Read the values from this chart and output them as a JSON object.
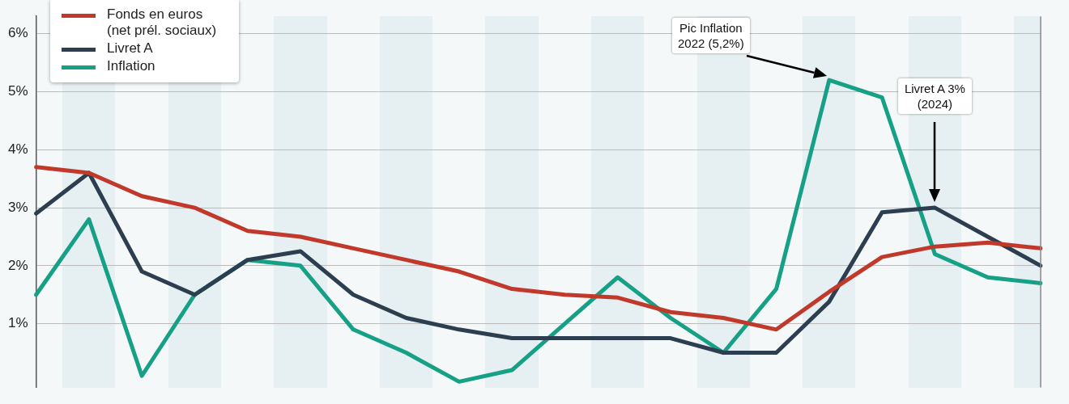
{
  "chart_data": {
    "type": "line",
    "categories": [
      null,
      null,
      null,
      null,
      null,
      null,
      null,
      null,
      null,
      null,
      null,
      null,
      null,
      null,
      null,
      null,
      null,
      null,
      null,
      null
    ],
    "ylim": [
      -0.1,
      6.3
    ],
    "yticks": [
      {
        "value": 1,
        "label": "1%"
      },
      {
        "value": 2,
        "label": "2%"
      },
      {
        "value": 3,
        "label": "3%"
      },
      {
        "value": 4,
        "label": "4%"
      },
      {
        "value": 5,
        "label": "5%"
      },
      {
        "value": 6,
        "label": "6%"
      }
    ],
    "grid": "y",
    "legend": "top left",
    "marker": "none",
    "line_style": "solid",
    "series": [
      {
        "name": "Fonds en euros (net prél. sociaux)",
        "color": "#c0392b",
        "values": [
          3.7,
          3.6,
          3.2,
          3.0,
          2.6,
          2.5,
          2.3,
          2.1,
          1.9,
          1.6,
          1.5,
          1.45,
          1.2,
          1.1,
          0.9,
          1.55,
          2.15,
          2.33,
          2.4,
          2.3
        ]
      },
      {
        "name": "Livret A",
        "color": "#2c3e50",
        "values": [
          2.9,
          3.6,
          1.9,
          1.5,
          2.1,
          2.25,
          1.5,
          1.1,
          0.9,
          0.75,
          0.75,
          0.75,
          0.75,
          0.5,
          0.5,
          1.38,
          2.92,
          3.0,
          2.5,
          2.0
        ]
      },
      {
        "name": "Inflation",
        "color": "#16a085",
        "values": [
          1.5,
          2.8,
          0.1,
          1.5,
          2.1,
          2.0,
          0.9,
          0.5,
          0.0,
          0.2,
          1.0,
          1.8,
          1.1,
          0.5,
          1.6,
          5.2,
          4.9,
          2.2,
          1.8,
          1.7
        ]
      }
    ],
    "annotations": [
      "Pic Inflation 2022 (5,2%)",
      "Livret A 3% (2024)"
    ]
  }
}
